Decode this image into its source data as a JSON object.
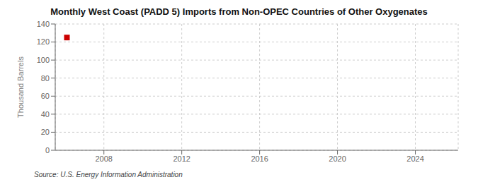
{
  "chart_data": {
    "type": "scatter",
    "title": "Monthly West Coast (PADD 5) Imports from Non-OPEC Countries of Other Oxygenates",
    "ylabel": "Thousand Barrels",
    "annotations": [
      "Source: U.S. Energy Information Administration"
    ],
    "x": [
      2006.1
    ],
    "values": [
      125
    ],
    "color": "#cc0000",
    "marker": "square",
    "xlim": [
      2005.5,
      2026.2
    ],
    "xticks": [
      2008,
      2012,
      2016,
      2020,
      2024
    ],
    "ylim": [
      0,
      140
    ],
    "yticks": [
      0,
      20,
      40,
      60,
      80,
      100,
      120,
      140
    ],
    "grid": true
  }
}
